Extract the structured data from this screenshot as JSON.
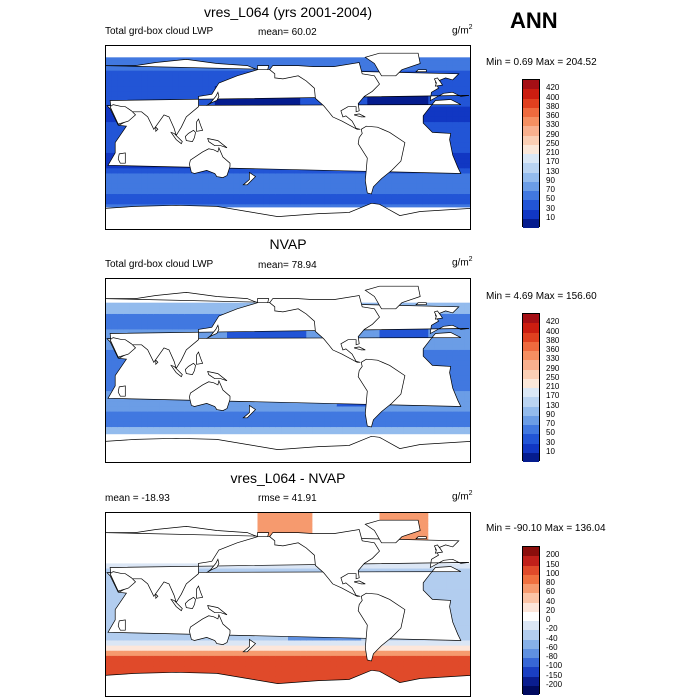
{
  "season": "ANN",
  "panels": [
    {
      "title": "vres_L064 (yrs 2001-2004)",
      "left_text": "Total grd-box cloud LWP",
      "stat_text": "mean=  60.02",
      "units_base": "g/m",
      "units_exp": "2",
      "minmax": "Min =   0.69 Max = 204.52",
      "levels": [
        "420",
        "400",
        "380",
        "360",
        "330",
        "290",
        "250",
        "210",
        "170",
        "130",
        "90",
        "70",
        "50",
        "30",
        "10"
      ],
      "colors": [
        "#a50f15",
        "#cb1d10",
        "#e0401f",
        "#ee6a3e",
        "#f58f61",
        "#f9b08e",
        "#fbcfb5",
        "#fbe8da",
        "#dbe8f6",
        "#bad4f2",
        "#93bbed",
        "#6b9de6",
        "#4178e0",
        "#2255d6",
        "#1137c3",
        "#051c8e"
      ]
    },
    {
      "title": "NVAP",
      "left_text": "Total grd-box cloud LWP",
      "stat_text": "mean=  78.94",
      "units_base": "g/m",
      "units_exp": "2",
      "minmax": "Min =   4.69 Max = 156.60",
      "levels": [
        "420",
        "400",
        "380",
        "360",
        "330",
        "290",
        "250",
        "210",
        "170",
        "130",
        "90",
        "70",
        "50",
        "30",
        "10"
      ],
      "colors": [
        "#a50f15",
        "#cb1d10",
        "#e0401f",
        "#ee6a3e",
        "#f58f61",
        "#f9b08e",
        "#fbcfb5",
        "#fbe8da",
        "#dbe8f6",
        "#bad4f2",
        "#93bbed",
        "#6b9de6",
        "#4178e0",
        "#2255d6",
        "#1137c3",
        "#051c8e"
      ]
    },
    {
      "title": "vres_L064 - NVAP",
      "left_text": "mean = -18.93",
      "stat_text": "rmse =  41.91",
      "units_base": "g/m",
      "units_exp": "2",
      "minmax": "Min = -90.10 Max = 136.04",
      "levels": [
        "200",
        "150",
        "100",
        "80",
        "60",
        "40",
        "20",
        "0",
        "-20",
        "-40",
        "-60",
        "-80",
        "-100",
        "-150",
        "-200"
      ],
      "colors": [
        "#8b0e0c",
        "#c0201a",
        "#e04a2a",
        "#f0703f",
        "#f69a6e",
        "#fbc4a6",
        "#fde6da",
        "#ffffff",
        "#dbe6f5",
        "#b2cdef",
        "#86b0e8",
        "#5f90e0",
        "#3767d6",
        "#1a3fc2",
        "#0a1d8f",
        "#000a60"
      ]
    }
  ]
}
